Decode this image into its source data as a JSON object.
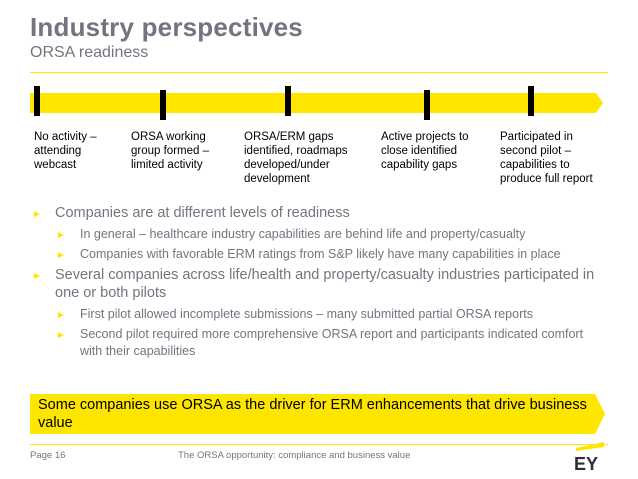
{
  "header": {
    "title": "Industry perspectives",
    "subtitle": "ORSA readiness"
  },
  "timeline": {
    "stages": [
      "No activity – attending webcast",
      "ORSA working group formed – limited activity",
      "ORSA/ERM gaps identified, roadmaps developed/under development",
      "Active projects to close identified capability gaps",
      "Participated in second pilot – capabilities to produce full report"
    ]
  },
  "bullets": [
    {
      "text": "Companies are at different levels of readiness",
      "sub": [
        "In general – healthcare industry capabilities are behind life and property/casualty",
        "Companies with favorable ERM ratings from S&P likely have many capabilities in place"
      ]
    },
    {
      "text": "Several companies across life/health and property/casualty industries participated in one or both pilots",
      "sub": [
        "First pilot allowed incomplete submissions – many submitted partial ORSA reports",
        "Second pilot required more comprehensive ORSA report and participants indicated comfort with their capabilities"
      ]
    }
  ],
  "bullet_glyph": "►",
  "callout": "Some companies use ORSA as the driver for ERM enhancements that drive business value",
  "footer": {
    "page": "Page 16",
    "title": "The ORSA opportunity: compliance and business value",
    "logo_text": "EY"
  },
  "colors": {
    "accent": "#FFE600",
    "text_gray": "#747480"
  }
}
